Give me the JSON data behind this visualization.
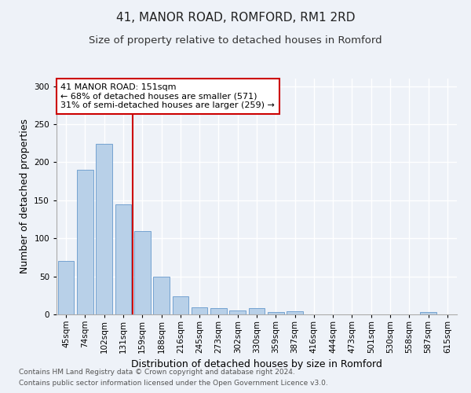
{
  "title1": "41, MANOR ROAD, ROMFORD, RM1 2RD",
  "title2": "Size of property relative to detached houses in Romford",
  "xlabel": "Distribution of detached houses by size in Romford",
  "ylabel": "Number of detached properties",
  "categories": [
    "45sqm",
    "74sqm",
    "102sqm",
    "131sqm",
    "159sqm",
    "188sqm",
    "216sqm",
    "245sqm",
    "273sqm",
    "302sqm",
    "330sqm",
    "359sqm",
    "387sqm",
    "416sqm",
    "444sqm",
    "473sqm",
    "501sqm",
    "530sqm",
    "558sqm",
    "587sqm",
    "615sqm"
  ],
  "values": [
    70,
    190,
    224,
    145,
    110,
    50,
    24,
    9,
    8,
    5,
    8,
    3,
    4,
    0,
    0,
    0,
    0,
    0,
    0,
    3,
    0
  ],
  "bar_color": "#b8d0e8",
  "bar_edge_color": "#6699cc",
  "annotation_text_line1": "41 MANOR ROAD: 151sqm",
  "annotation_text_line2": "← 68% of detached houses are smaller (571)",
  "annotation_text_line3": "31% of semi-detached houses are larger (259) →",
  "annotation_box_color": "#ffffff",
  "annotation_box_edge": "#cc0000",
  "vline_color": "#cc0000",
  "vline_x": 3.5,
  "ylim": [
    0,
    310
  ],
  "yticks": [
    0,
    50,
    100,
    150,
    200,
    250,
    300
  ],
  "footnote1": "Contains HM Land Registry data © Crown copyright and database right 2024.",
  "footnote2": "Contains public sector information licensed under the Open Government Licence v3.0.",
  "bg_color": "#eef2f8",
  "plot_bg_color": "#eef2f8",
  "title1_fontsize": 11,
  "title2_fontsize": 9.5,
  "xlabel_fontsize": 9,
  "ylabel_fontsize": 9,
  "footnote_fontsize": 6.5,
  "tick_fontsize": 7.5,
  "annot_fontsize": 8
}
